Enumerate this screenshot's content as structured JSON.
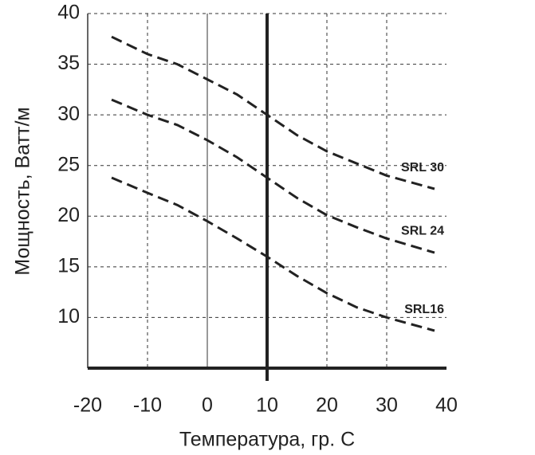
{
  "chart_data": {
    "type": "line",
    "x_label": "Температура, гр. С",
    "y_label": "Мощность, Ватт/м",
    "x": [
      -16,
      -10,
      -5,
      0,
      5,
      10,
      15,
      20,
      25,
      30,
      38
    ],
    "series": [
      {
        "name": "SRL 30",
        "color": "#222222",
        "values": [
          37.7,
          36,
          35,
          33.5,
          32,
          30,
          28,
          26.4,
          25.2,
          24,
          22.7
        ]
      },
      {
        "name": "SRL 24",
        "color": "#222222",
        "values": [
          31.5,
          30,
          29,
          27.5,
          25.8,
          23.8,
          21.8,
          20.1,
          18.9,
          17.8,
          16.4
        ]
      },
      {
        "name": "SRL16",
        "color": "#222222",
        "values": [
          23.8,
          22.3,
          21.1,
          19.5,
          17.8,
          16,
          14.1,
          12.4,
          11,
          10,
          8.7
        ]
      }
    ],
    "xlim": [
      -20,
      40
    ],
    "xticks": [
      -20,
      -10,
      0,
      10,
      20,
      30,
      40
    ],
    "ylim": [
      5,
      40
    ],
    "yticks": [
      10,
      15,
      20,
      25,
      30,
      35,
      40
    ],
    "highlight_x": 10,
    "grid": true
  }
}
